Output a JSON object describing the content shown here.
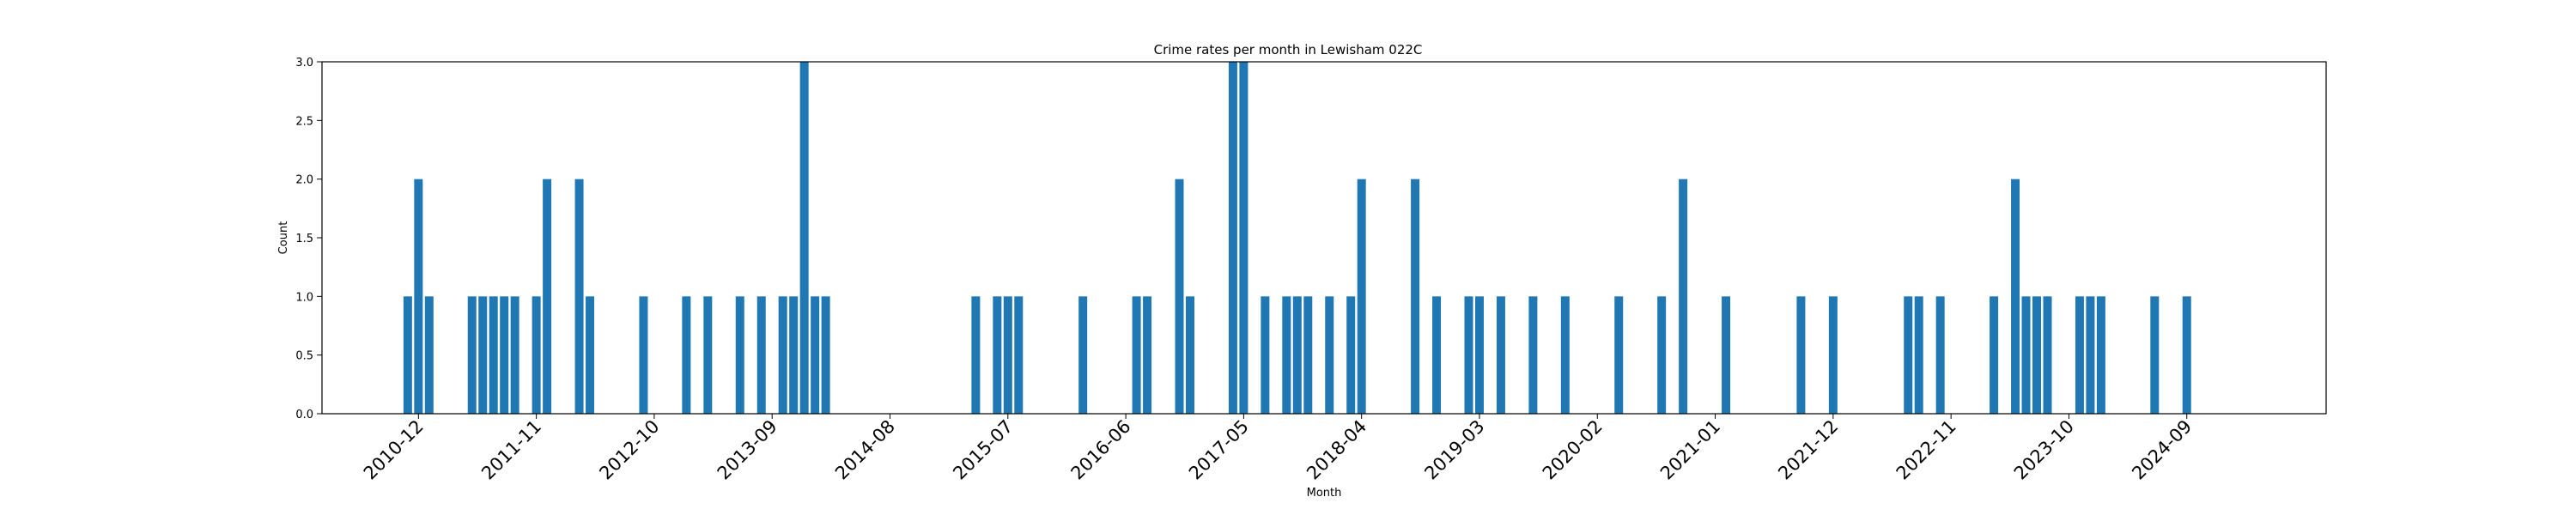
{
  "chart_data": {
    "type": "bar",
    "title": "Crime rates per month in Lewisham 022C",
    "xlabel": "Month",
    "ylabel": "Count",
    "ylim": [
      0,
      3.0
    ],
    "yticks": [
      0.0,
      0.5,
      1.0,
      1.5,
      2.0,
      2.5,
      3.0
    ],
    "ytick_labels": [
      "0.0",
      "0.5",
      "1.0",
      "1.5",
      "2.0",
      "2.5",
      "3.0"
    ],
    "xtick_labels": [
      "2010-12",
      "2011-11",
      "2012-10",
      "2013-09",
      "2014-08",
      "2015-07",
      "2016-06",
      "2017-05",
      "2018-04",
      "2019-03",
      "2020-02",
      "2021-01",
      "2021-12",
      "2022-11",
      "2023-10",
      "2024-09"
    ],
    "x_range": [
      "2010-03",
      "2025-10"
    ],
    "bar_color": "#1f77b4",
    "series": [
      {
        "name": "Count",
        "points": [
          [
            "2010-11",
            1
          ],
          [
            "2010-12",
            2
          ],
          [
            "2011-01",
            1
          ],
          [
            "2011-05",
            1
          ],
          [
            "2011-06",
            1
          ],
          [
            "2011-07",
            1
          ],
          [
            "2011-08",
            1
          ],
          [
            "2011-09",
            1
          ],
          [
            "2011-11",
            1
          ],
          [
            "2011-12",
            2
          ],
          [
            "2012-03",
            2
          ],
          [
            "2012-04",
            1
          ],
          [
            "2012-09",
            1
          ],
          [
            "2013-01",
            1
          ],
          [
            "2013-03",
            1
          ],
          [
            "2013-06",
            1
          ],
          [
            "2013-08",
            1
          ],
          [
            "2013-10",
            1
          ],
          [
            "2013-11",
            1
          ],
          [
            "2013-12",
            3
          ],
          [
            "2014-01",
            1
          ],
          [
            "2014-02",
            1
          ],
          [
            "2015-04",
            1
          ],
          [
            "2015-06",
            1
          ],
          [
            "2015-07",
            1
          ],
          [
            "2015-08",
            1
          ],
          [
            "2016-02",
            1
          ],
          [
            "2016-07",
            1
          ],
          [
            "2016-08",
            1
          ],
          [
            "2016-11",
            2
          ],
          [
            "2016-12",
            1
          ],
          [
            "2017-04",
            3
          ],
          [
            "2017-05",
            3
          ],
          [
            "2017-07",
            1
          ],
          [
            "2017-09",
            1
          ],
          [
            "2017-10",
            1
          ],
          [
            "2017-11",
            1
          ],
          [
            "2018-01",
            1
          ],
          [
            "2018-03",
            1
          ],
          [
            "2018-04",
            2
          ],
          [
            "2018-09",
            2
          ],
          [
            "2018-11",
            1
          ],
          [
            "2019-02",
            1
          ],
          [
            "2019-03",
            1
          ],
          [
            "2019-05",
            1
          ],
          [
            "2019-08",
            1
          ],
          [
            "2019-11",
            1
          ],
          [
            "2020-04",
            1
          ],
          [
            "2020-08",
            1
          ],
          [
            "2020-10",
            2
          ],
          [
            "2021-02",
            1
          ],
          [
            "2021-09",
            1
          ],
          [
            "2021-12",
            1
          ],
          [
            "2022-07",
            1
          ],
          [
            "2022-08",
            1
          ],
          [
            "2022-10",
            1
          ],
          [
            "2023-03",
            1
          ],
          [
            "2023-05",
            2
          ],
          [
            "2023-06",
            1
          ],
          [
            "2023-07",
            1
          ],
          [
            "2023-08",
            1
          ],
          [
            "2023-11",
            1
          ],
          [
            "2023-12",
            1
          ],
          [
            "2024-01",
            1
          ],
          [
            "2024-06",
            1
          ],
          [
            "2024-09",
            1
          ]
        ]
      }
    ]
  }
}
